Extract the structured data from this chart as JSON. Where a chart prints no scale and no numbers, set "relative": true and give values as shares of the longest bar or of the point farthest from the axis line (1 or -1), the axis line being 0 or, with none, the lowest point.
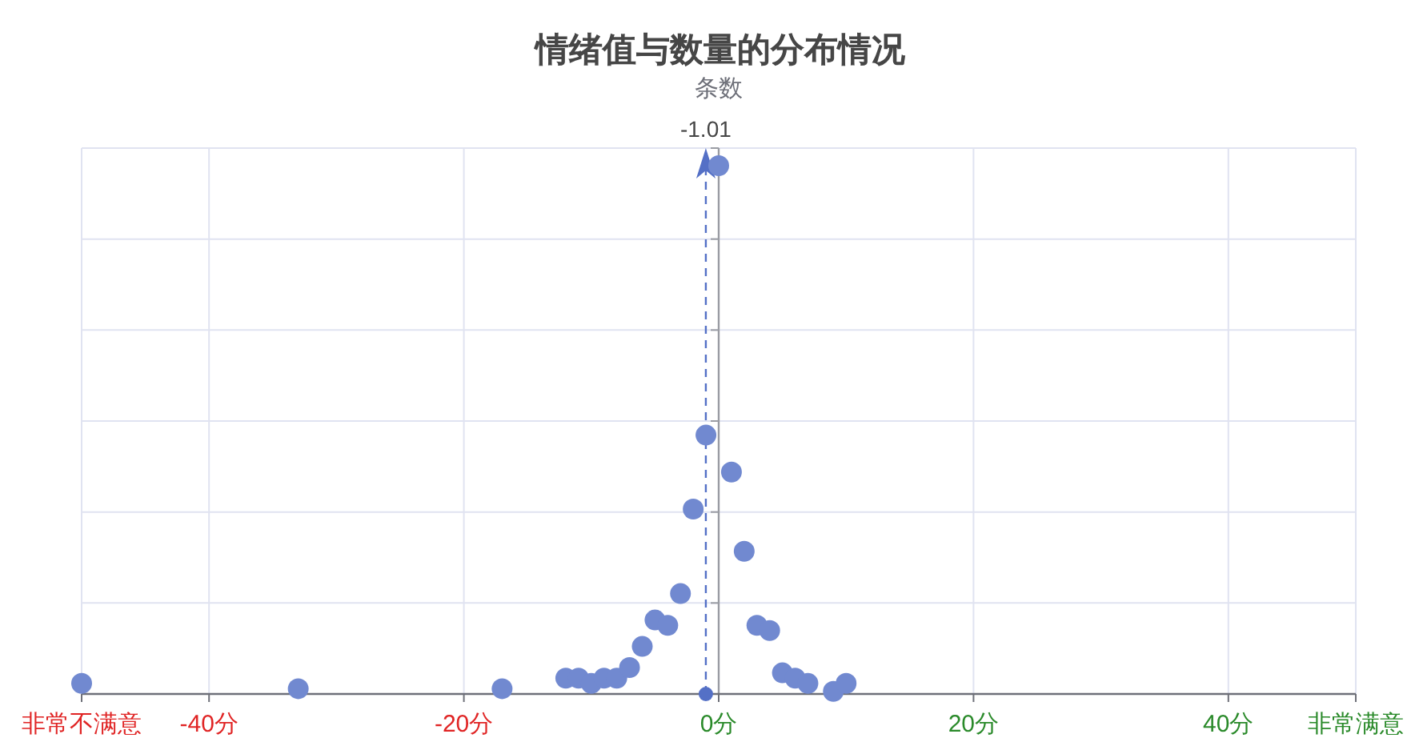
{
  "chart_data": {
    "type": "scatter",
    "title": "情绪值与数量的分布情况",
    "ylabel": "条数",
    "x": [
      -50,
      -33,
      -17,
      -12,
      -11,
      -10,
      -9,
      -8,
      -7,
      -6,
      -5,
      -4,
      -3,
      -2,
      -1,
      0,
      1,
      2,
      3,
      4,
      5,
      6,
      7,
      9,
      10
    ],
    "values": [
      0.02,
      0.01,
      0.01,
      0.03,
      0.03,
      0.02,
      0.03,
      0.03,
      0.05,
      0.09,
      0.14,
      0.13,
      0.19,
      0.35,
      0.49,
      1,
      0.42,
      0.27,
      0.13,
      0.12,
      0.04,
      0.03,
      0.02,
      0.005,
      0.02
    ],
    "color": "#7189d0",
    "relative": true,
    "marker": "circle",
    "grid": true,
    "xlim": [
      -50,
      50
    ],
    "xticks": [
      {
        "value": -50,
        "label": "非常不满意"
      },
      {
        "value": -40,
        "label": "-40分"
      },
      {
        "value": -20,
        "label": "-20分"
      },
      {
        "value": 0,
        "label": "0分"
      },
      {
        "value": 20,
        "label": "20分"
      },
      {
        "value": 40,
        "label": "40分"
      },
      {
        "value": 50,
        "label": "非常满意"
      }
    ],
    "ref_lines": [
      {
        "axis": "x",
        "value": -1.01,
        "label": "-1.01",
        "color": "#5470c6",
        "line_style": "dashed"
      }
    ]
  }
}
